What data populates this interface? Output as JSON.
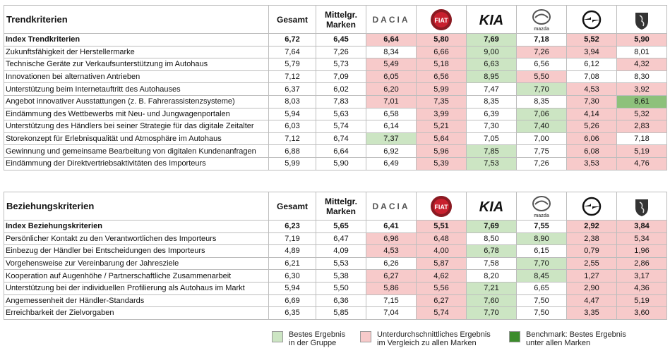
{
  "sections": [
    {
      "title": "Trendkriterien",
      "col_gesamt": "Gesamt",
      "col_mittel": "Mittelgr.\nMarken",
      "rows": [
        {
          "label": "Index Trendkriterien",
          "bold": true,
          "v": [
            "6,72",
            "6,45",
            "6,64",
            "5,80",
            "7,69",
            "7,18",
            "5,52",
            "5,90"
          ],
          "c": [
            "",
            "",
            "p",
            "p",
            "g",
            "",
            "p",
            "p"
          ]
        },
        {
          "label": "Zukunftsfähigkeit der Herstellermarke",
          "v": [
            "7,64",
            "7,26",
            "8,34",
            "6,66",
            "9,00",
            "7,26",
            "3,94",
            "8,01"
          ],
          "c": [
            "",
            "",
            "",
            "p",
            "g",
            "p",
            "p",
            ""
          ]
        },
        {
          "label": "Technische Geräte zur Verkaufsunterstützung im Autohaus",
          "v": [
            "5,79",
            "5,73",
            "5,49",
            "5,18",
            "6,63",
            "6,56",
            "6,12",
            "4,32"
          ],
          "c": [
            "",
            "",
            "p",
            "p",
            "g",
            "",
            "",
            "p"
          ]
        },
        {
          "label": "Innovationen bei alternativen Antrieben",
          "v": [
            "7,12",
            "7,09",
            "6,05",
            "6,56",
            "8,95",
            "5,50",
            "7,08",
            "8,30"
          ],
          "c": [
            "",
            "",
            "p",
            "p",
            "g",
            "p",
            "",
            ""
          ]
        },
        {
          "label": "Unterstützung beim Internetauftritt des Autohauses",
          "v": [
            "6,37",
            "6,02",
            "6,20",
            "5,99",
            "7,47",
            "7,70",
            "4,53",
            "3,92"
          ],
          "c": [
            "",
            "",
            "p",
            "p",
            "",
            "g",
            "p",
            "p"
          ]
        },
        {
          "label": "Angebot innovativer Ausstattungen (z. B. Fahrerassistenzsysteme)",
          "v": [
            "8,03",
            "7,83",
            "7,01",
            "7,35",
            "8,35",
            "8,35",
            "7,30",
            "8,61"
          ],
          "c": [
            "",
            "",
            "p",
            "p",
            "",
            "",
            "p",
            "d"
          ]
        },
        {
          "label": "Eindämmung des Wettbewerbs mit Neu- und Jungwagenportalen",
          "v": [
            "5,94",
            "5,63",
            "6,58",
            "3,99",
            "6,39",
            "7,06",
            "4,14",
            "5,32"
          ],
          "c": [
            "",
            "",
            "",
            "p",
            "",
            "g",
            "p",
            "p"
          ]
        },
        {
          "label": "Unterstützung des Händlers bei seiner Strategie für das digitale Zeitalter",
          "v": [
            "6,03",
            "5,74",
            "6,14",
            "5,21",
            "7,30",
            "7,40",
            "5,26",
            "2,83"
          ],
          "c": [
            "",
            "",
            "",
            "p",
            "",
            "g",
            "p",
            "p"
          ]
        },
        {
          "label": "Storekonzept für Erlebnisqualität und Atmosphäre im Autohaus",
          "v": [
            "7,12",
            "6,74",
            "7,37",
            "5,64",
            "7,05",
            "7,00",
            "6,06",
            "7,18"
          ],
          "c": [
            "",
            "",
            "g",
            "p",
            "",
            "",
            "p",
            ""
          ]
        },
        {
          "label": "Gewinnung und gemeinsame Bearbeitung von digitalen Kundenanfragen",
          "v": [
            "6,88",
            "6,64",
            "6,92",
            "5,96",
            "7,85",
            "7,75",
            "6,08",
            "5,19"
          ],
          "c": [
            "",
            "",
            "",
            "p",
            "g",
            "",
            "p",
            "p"
          ]
        },
        {
          "label": "Eindämmung der Direktvertriebsaktivitäten des Importeurs",
          "v": [
            "5,99",
            "5,90",
            "6,49",
            "5,39",
            "7,53",
            "7,26",
            "3,53",
            "4,76"
          ],
          "c": [
            "",
            "",
            "",
            "p",
            "g",
            "",
            "p",
            "p"
          ]
        }
      ]
    },
    {
      "title": "Beziehungskriterien",
      "col_gesamt": "Gesamt",
      "col_mittel": "Mittelgr.\nMarken",
      "rows": [
        {
          "label": "Index Beziehungskriterien",
          "bold": true,
          "v": [
            "6,23",
            "5,65",
            "6,41",
            "5,51",
            "7,69",
            "7,55",
            "2,92",
            "3,84"
          ],
          "c": [
            "",
            "",
            "",
            "p",
            "g",
            "",
            "p",
            "p"
          ]
        },
        {
          "label": "Persönlicher Kontakt zu den Verantwortlichen des Importeurs",
          "v": [
            "7,19",
            "6,47",
            "6,96",
            "6,48",
            "8,50",
            "8,90",
            "2,38",
            "5,34"
          ],
          "c": [
            "",
            "",
            "p",
            "p",
            "",
            "g",
            "p",
            "p"
          ]
        },
        {
          "label": "Einbezug der Händler bei Entscheidungen des Importeurs",
          "v": [
            "4,89",
            "4,09",
            "4,53",
            "4,00",
            "6,78",
            "6,15",
            "0,79",
            "1,96"
          ],
          "c": [
            "",
            "",
            "p",
            "p",
            "g",
            "",
            "p",
            "p"
          ]
        },
        {
          "label": "Vorgehensweise zur Vereinbarung der Jahresziele",
          "v": [
            "6,21",
            "5,53",
            "6,26",
            "5,87",
            "7,58",
            "7,70",
            "2,55",
            "2,86"
          ],
          "c": [
            "",
            "",
            "",
            "p",
            "",
            "g",
            "p",
            "p"
          ]
        },
        {
          "label": "Kooperation auf Augenhöhe / Partnerschaftliche Zusammenarbeit",
          "v": [
            "6,30",
            "5,38",
            "6,27",
            "4,62",
            "8,20",
            "8,45",
            "1,27",
            "3,17"
          ],
          "c": [
            "",
            "",
            "p",
            "p",
            "",
            "g",
            "p",
            "p"
          ]
        },
        {
          "label": "Unterstützung bei der individuellen Profilierung als Autohaus im Markt",
          "v": [
            "5,94",
            "5,50",
            "5,86",
            "5,56",
            "7,21",
            "6,65",
            "2,90",
            "4,36"
          ],
          "c": [
            "",
            "",
            "p",
            "p",
            "g",
            "",
            "p",
            "p"
          ]
        },
        {
          "label": "Angemessenheit der Händler-Standards",
          "v": [
            "6,69",
            "6,36",
            "7,15",
            "6,27",
            "7,60",
            "7,50",
            "4,47",
            "5,19"
          ],
          "c": [
            "",
            "",
            "",
            "p",
            "g",
            "",
            "p",
            "p"
          ]
        },
        {
          "label": "Erreichbarkeit der Zielvorgaben",
          "v": [
            "6,35",
            "5,85",
            "7,04",
            "5,74",
            "7,70",
            "7,50",
            "3,35",
            "3,60"
          ],
          "c": [
            "",
            "",
            "",
            "p",
            "g",
            "",
            "p",
            "p"
          ]
        }
      ]
    }
  ],
  "brands": [
    {
      "name": "dacia-logo",
      "text": "DACIA"
    },
    {
      "name": "fiat-logo",
      "text": "FIAT"
    },
    {
      "name": "kia-logo",
      "text": "KIA"
    },
    {
      "name": "mazda-logo",
      "text": "mazda"
    },
    {
      "name": "opel-logo",
      "text": ""
    },
    {
      "name": "peugeot-logo",
      "text": ""
    }
  ],
  "colors": {
    "light_green": "#cce5c3",
    "pink": "#f7caca",
    "dark_green": "#8dc17b"
  },
  "legend": [
    {
      "key": "g",
      "text": "Bestes Ergebnis\nin der Gruppe"
    },
    {
      "key": "p",
      "text": "Unterdurchschnittliches Ergebnis\nim Vergleich zu allen Marken"
    },
    {
      "key": "d",
      "text": "Benchmark: Bestes Ergebnis\nunter allen Marken"
    }
  ]
}
